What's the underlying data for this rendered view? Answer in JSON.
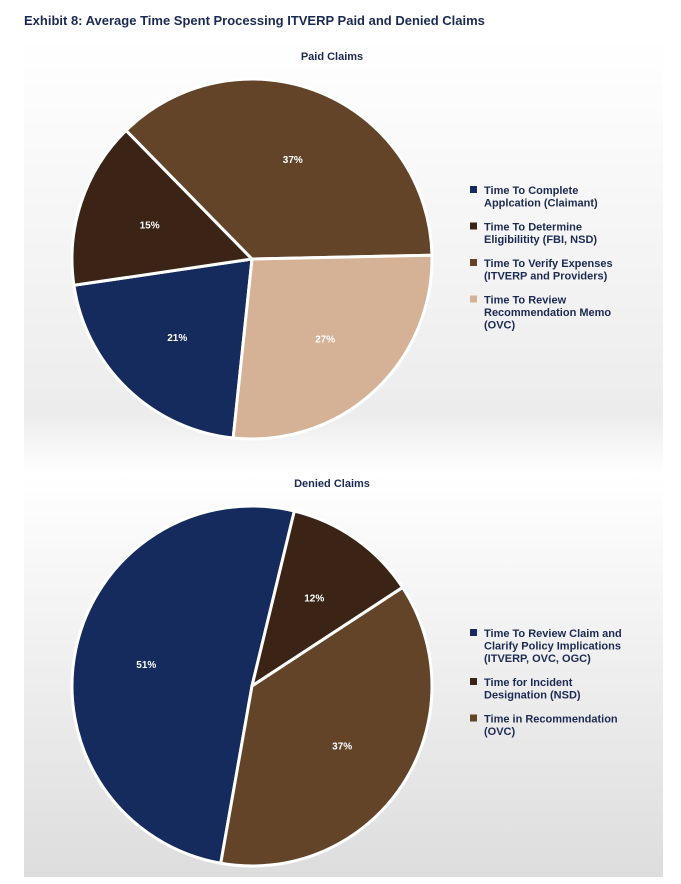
{
  "title": "Exhibit 8: Average Time Spent Processing ITVERP Paid and Denied Claims",
  "colors": {
    "navy": "#152b5e",
    "dark_brown": "#3b2416",
    "brown": "#644429",
    "tan": "#d5b196"
  },
  "chart_data": [
    {
      "type": "pie",
      "title": "Paid Claims",
      "legend": "right",
      "slices": [
        {
          "label": "Time To Complete Application (Claimant)",
          "label_lines": [
            "Time To Complete",
            "Applcation (Claimant)"
          ],
          "value": 21,
          "display": "21%",
          "color": "#152b5e"
        },
        {
          "label": "Time To Determine Eligibility (FBI, NSD)",
          "label_lines": [
            "Time To Determine",
            "Eligibilitity (FBI, NSD)"
          ],
          "value": 15,
          "display": "15%",
          "color": "#3b2416"
        },
        {
          "label": "Time To Verify Expenses (ITVERP and Providers)",
          "label_lines": [
            "Time To Verify Expenses",
            "(ITVERP and Providers)"
          ],
          "value": 37,
          "display": "37%",
          "color": "#644429"
        },
        {
          "label": "Time To Review Recommendation Memo (OVC)",
          "label_lines": [
            "Time To Review",
            "Recommendation Memo",
            "(OVC)"
          ],
          "value": 27,
          "display": "27%",
          "color": "#d5b196"
        }
      ]
    },
    {
      "type": "pie",
      "title": "Denied Claims",
      "legend": "right",
      "slices": [
        {
          "label": "Time To Review Claim and Clarify Policy Implications (ITVERP, OVC, OGC)",
          "label_lines": [
            "Time To Review Claim and",
            "Clarify Policy Implications",
            "(ITVERP, OVC, OGC)"
          ],
          "value": 51,
          "display": "51%",
          "color": "#152b5e"
        },
        {
          "label": "Time for Incident Designation (NSD)",
          "label_lines": [
            "Time for Incident",
            "Designation (NSD)"
          ],
          "value": 12,
          "display": "12%",
          "color": "#3b2416"
        },
        {
          "label": "Time in Recommendation (OVC)",
          "label_lines": [
            "Time in Recommendation",
            "(OVC)"
          ],
          "value": 37,
          "display": "37%",
          "color": "#644429"
        }
      ]
    }
  ]
}
